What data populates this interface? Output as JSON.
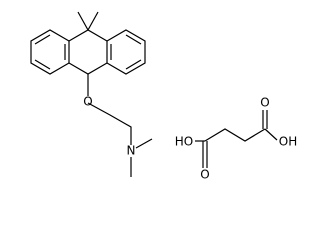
{
  "molecules": [
    {
      "atoms": [
        "O",
        "N"
      ]
    },
    {
      "atoms": [
        "HO",
        "O",
        "O",
        "OH"
      ]
    }
  ]
}
